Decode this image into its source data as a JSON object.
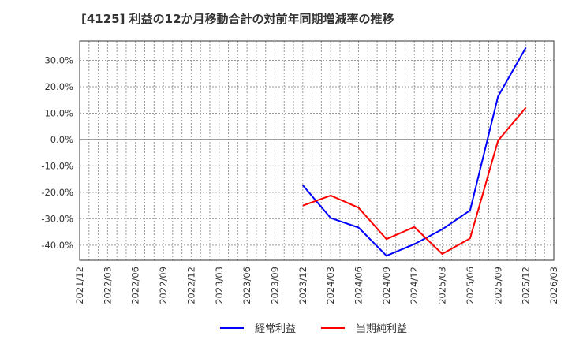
{
  "title": "[4125]  利益の12か月移動合計の対前年同期増減率の推移",
  "chart_data": {
    "type": "line",
    "title": "[4125]  利益の12か月移動合計の対前年同期増減率の推移",
    "xlabel": "",
    "ylabel": "",
    "x_ticks": [
      "2021/12",
      "2022/03",
      "2022/06",
      "2022/09",
      "2022/12",
      "2023/03",
      "2023/06",
      "2023/09",
      "2023/12",
      "2024/03",
      "2024/06",
      "2024/09",
      "2024/12",
      "2025/03",
      "2025/06",
      "2025/09",
      "2025/12",
      "2026/03"
    ],
    "y_ticks": [
      "30.0%",
      "20.0%",
      "10.0%",
      "0.0%",
      "-10.0%",
      "-20.0%",
      "-30.0%",
      "-40.0%"
    ],
    "y_tick_values": [
      30,
      20,
      10,
      0,
      -10,
      -20,
      -30,
      -40
    ],
    "ylim": [
      -45.7,
      37.3
    ],
    "xlim": [
      "2021/12",
      "2026/03"
    ],
    "grid": true,
    "legend_position": "bottom",
    "x": [
      "2023/12",
      "2024/03",
      "2024/06",
      "2024/09",
      "2024/12",
      "2025/03",
      "2025/06",
      "2025/09",
      "2025/12"
    ],
    "series": [
      {
        "name": "経常利益",
        "color": "#0000ff",
        "values": [
          -17.3,
          -29.7,
          -33.3,
          -44.0,
          -39.6,
          -34.0,
          -26.8,
          16.3,
          34.8
        ]
      },
      {
        "name": "当期純利益",
        "color": "#ff0000",
        "values": [
          -25.0,
          -21.2,
          -25.8,
          -37.7,
          -33.1,
          -43.3,
          -37.4,
          -0.4,
          12.1
        ]
      }
    ]
  },
  "legend": {
    "items": [
      {
        "label": "経常利益",
        "color": "#0000ff"
      },
      {
        "label": "当期純利益",
        "color": "#ff0000"
      }
    ]
  }
}
